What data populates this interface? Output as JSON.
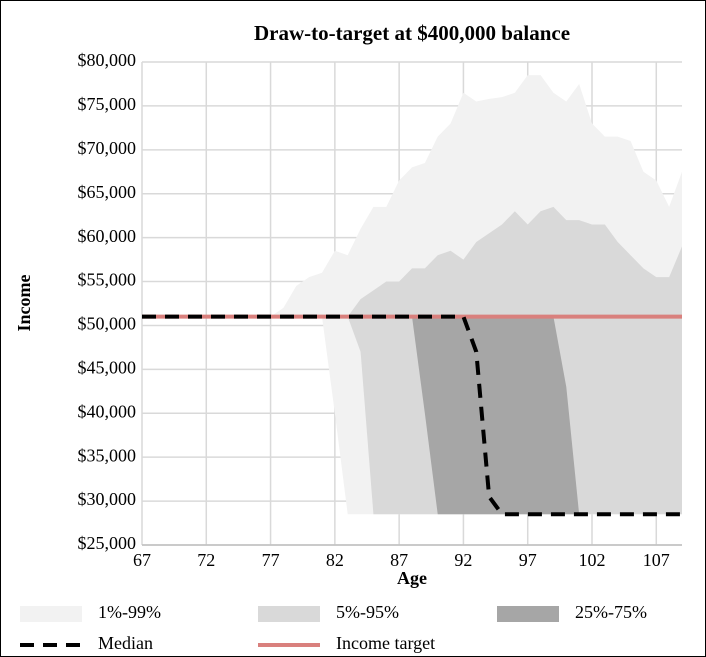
{
  "chart_data": {
    "type": "fan",
    "title": "Draw-to-target at $400,000 balance",
    "x_label": "Age",
    "y_label": "Income",
    "x": [
      67,
      68,
      69,
      70,
      71,
      72,
      73,
      74,
      75,
      76,
      77,
      78,
      79,
      80,
      81,
      82,
      83,
      84,
      85,
      86,
      87,
      88,
      89,
      90,
      91,
      92,
      93,
      94,
      95,
      96,
      97,
      98,
      99,
      100,
      101,
      102,
      103,
      104,
      105,
      106,
      107,
      108,
      109
    ],
    "xlim": [
      67,
      109
    ],
    "xticks": [
      67,
      72,
      77,
      82,
      87,
      92,
      97,
      102,
      107
    ],
    "ylim": [
      25000,
      80000
    ],
    "yticks": [
      {
        "value": 25000,
        "label": "$25,000"
      },
      {
        "value": 30000,
        "label": "$30,000"
      },
      {
        "value": 35000,
        "label": "$35,000"
      },
      {
        "value": 40000,
        "label": "$40,000"
      },
      {
        "value": 45000,
        "label": "$45,000"
      },
      {
        "value": 50000,
        "label": "$50,000"
      },
      {
        "value": 55000,
        "label": "$55,000"
      },
      {
        "value": 60000,
        "label": "$60,000"
      },
      {
        "value": 65000,
        "label": "$65,000"
      },
      {
        "value": 70000,
        "label": "$70,000"
      },
      {
        "value": 75000,
        "label": "$75,000"
      },
      {
        "value": 80000,
        "label": "$80,000"
      }
    ],
    "grid": true,
    "legend": "bottom",
    "bands": [
      {
        "name": "1%-99%",
        "color": "#f2f2f2",
        "upper": [
          51000,
          51000,
          51000,
          51000,
          51000,
          51000,
          51000,
          51000,
          51000,
          51000,
          51000,
          52000,
          54500,
          55500,
          56000,
          58500,
          58000,
          61000,
          63500,
          63500,
          66500,
          68000,
          68500,
          71500,
          73000,
          76500,
          75500,
          75800,
          76000,
          76500,
          78500,
          78500,
          76500,
          75500,
          77500,
          73000,
          71500,
          71500,
          71000,
          67500,
          66500,
          63500,
          67500
        ],
        "lower": [
          51000,
          51000,
          51000,
          51000,
          51000,
          51000,
          51000,
          51000,
          51000,
          51000,
          51000,
          51000,
          51000,
          51000,
          51000,
          40000,
          28500,
          28500,
          28500,
          28500,
          28500,
          28500,
          28500,
          28500,
          28500,
          28500,
          28500,
          28500,
          28500,
          28500,
          28500,
          28500,
          28500,
          28500,
          28500,
          28500,
          28500,
          28500,
          28500,
          28500,
          28500,
          28500,
          28500
        ]
      },
      {
        "name": "5%-95%",
        "color": "#d9d9d9",
        "upper": [
          null,
          null,
          null,
          null,
          null,
          null,
          null,
          null,
          null,
          null,
          null,
          null,
          null,
          null,
          null,
          null,
          51000,
          53000,
          54000,
          55000,
          55000,
          56500,
          56500,
          58000,
          58500,
          57500,
          59500,
          60500,
          61500,
          63000,
          61500,
          63000,
          63500,
          62000,
          62000,
          61500,
          61500,
          59500,
          58000,
          56500,
          55500,
          55500,
          59000
        ],
        "lower": [
          null,
          null,
          null,
          null,
          null,
          null,
          null,
          null,
          null,
          null,
          null,
          null,
          null,
          null,
          null,
          null,
          51000,
          47000,
          28500,
          28500,
          28500,
          28500,
          28500,
          28500,
          28500,
          28500,
          28500,
          28500,
          28500,
          28500,
          28500,
          28500,
          28500,
          28500,
          28500,
          28500,
          28500,
          28500,
          28500,
          28500,
          28500,
          28500,
          28500
        ]
      },
      {
        "name": "25%-75%",
        "color": "#a6a6a6",
        "upper": [
          null,
          null,
          null,
          null,
          null,
          null,
          null,
          null,
          null,
          null,
          null,
          null,
          null,
          null,
          null,
          null,
          null,
          null,
          null,
          null,
          null,
          51000,
          51000,
          51000,
          51000,
          51000,
          51000,
          51000,
          51000,
          51000,
          51000,
          51000,
          51000,
          43000,
          28500,
          null,
          null,
          null,
          null,
          null,
          null,
          null,
          null
        ],
        "lower": [
          null,
          null,
          null,
          null,
          null,
          null,
          null,
          null,
          null,
          null,
          null,
          null,
          null,
          null,
          null,
          null,
          null,
          null,
          null,
          null,
          null,
          51000,
          40000,
          28500,
          28500,
          28500,
          28500,
          28500,
          28500,
          28500,
          28500,
          28500,
          28500,
          28500,
          28500,
          null,
          null,
          null,
          null,
          null,
          null,
          null,
          null
        ]
      }
    ],
    "series": [
      {
        "name": "Median",
        "color": "#000000",
        "dashed": true,
        "values": [
          51000,
          51000,
          51000,
          51000,
          51000,
          51000,
          51000,
          51000,
          51000,
          51000,
          51000,
          51000,
          51000,
          51000,
          51000,
          51000,
          51000,
          51000,
          51000,
          51000,
          51000,
          51000,
          51000,
          51000,
          51000,
          51000,
          47000,
          30500,
          28500,
          28500,
          28500,
          28500,
          28500,
          28500,
          28500,
          28500,
          28500,
          28500,
          28500,
          28500,
          28500,
          28500,
          28500
        ]
      },
      {
        "name": "Income target",
        "color": "#d9807d",
        "dashed": false,
        "values": [
          51000,
          51000,
          51000,
          51000,
          51000,
          51000,
          51000,
          51000,
          51000,
          51000,
          51000,
          51000,
          51000,
          51000,
          51000,
          51000,
          51000,
          51000,
          51000,
          51000,
          51000,
          51000,
          51000,
          51000,
          51000,
          51000,
          51000,
          51000,
          51000,
          51000,
          51000,
          51000,
          51000,
          51000,
          51000,
          51000,
          51000,
          51000,
          51000,
          51000,
          51000,
          51000,
          51000
        ]
      }
    ]
  }
}
